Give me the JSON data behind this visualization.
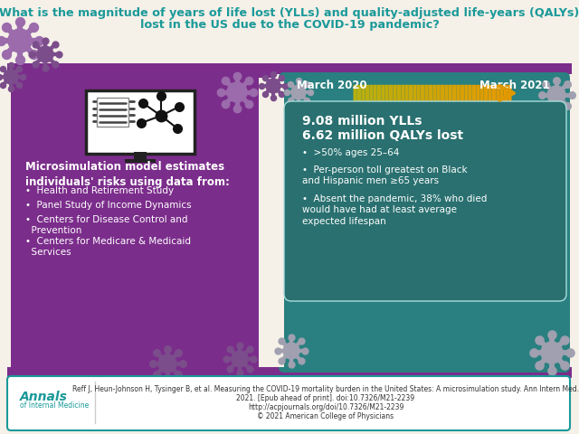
{
  "title_line1": "What is the magnitude of years of life lost (YLLs) and quality-adjusted life-years (QALYs)",
  "title_line2": "lost in the US due to the COVID-19 pandemic?",
  "title_color": "#1a9999",
  "bg_color": "#f5f0e8",
  "purple": "#7b2d8b",
  "dark_teal": "#2a8080",
  "stats_box_color": "#2a7070",
  "left_heading": "Microsimulation model estimates\nindividuals' risks using data from:",
  "left_bullets": [
    "Health and Retirement Study",
    "Panel Study of Income Dynamics",
    "Centers for Disease Control and\n  Prevention",
    "Centers for Medicare & Medicaid\n  Services"
  ],
  "arrow_label_left": "March 2020",
  "arrow_label_right": "March 2021",
  "stats_line1": "9.08 million YLLs",
  "stats_line2": "6.62 million QALYs lost",
  "right_bullets": [
    ">50% ages 25–64",
    "Per-person toll greatest on Black\nand Hispanic men ≥65 years",
    "Absent the pandemic, 38% who died\nwould have had at least average\nexpected lifespan"
  ],
  "footer_text1": "Reff J, Heun-Johnson H, Tysinger B, et al. Measuring the COVID-19 mortality burden in the United States: A microsimulation study. Ann Intern Med.",
  "footer_text2": "2021. [Epub ahead of print]. doi:10.7326/M21-2239",
  "footer_text3": "http://acpjournals.org/doi/10.7326/M21-2239",
  "footer_text4": "© 2021 American College of Physicians",
  "annals_color": "#1a9999",
  "border_color": "#1a9999",
  "virus_color1": "#9b6bab",
  "virus_color2": "#7b4d8b",
  "virus_color_gray": "#a0a0b0"
}
